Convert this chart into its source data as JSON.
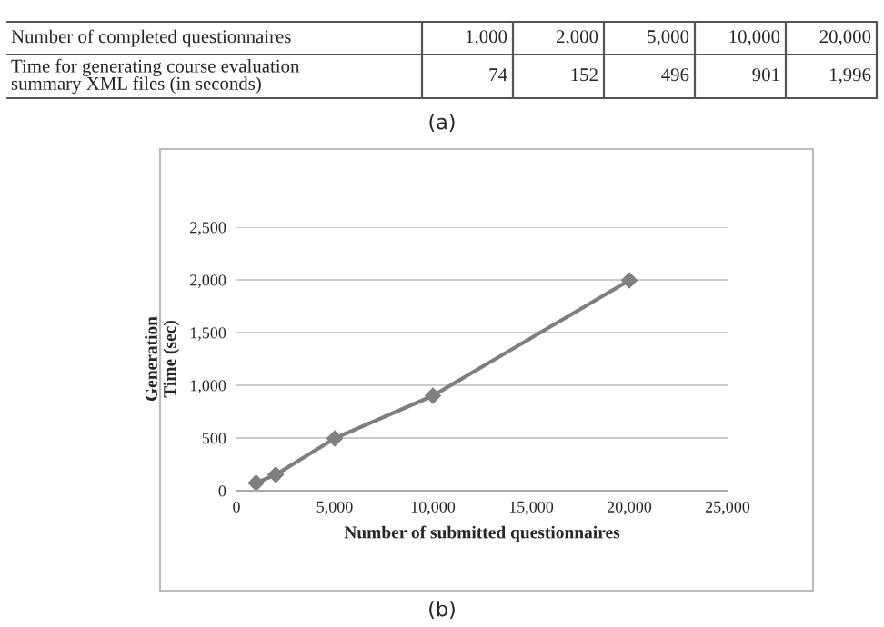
{
  "chart_data": {
    "type": "line",
    "xlabel": "Number of submitted questionnaires",
    "ylabel": "Generation\nTime (sec)",
    "x": [
      1000,
      2000,
      5000,
      10000,
      20000
    ],
    "series": [
      {
        "color": "#7f7f7f",
        "values": [
          74,
          152,
          496,
          901,
          1996
        ]
      }
    ],
    "annotations": [
      "Number of completed questionnaires",
      "1,000",
      "2,000",
      "5,000",
      "10,000",
      "20,000",
      "Time for generating course evaluation\nsummary XML files (in seconds)",
      "74",
      "152",
      "496",
      "901",
      "1,996",
      "(a)",
      "(b)"
    ],
    "xlim": [
      0,
      25000
    ],
    "xticks": [
      0,
      {
        "value": 5000,
        "label": "5,000"
      },
      {
        "value": 10000,
        "label": "10,000"
      },
      {
        "value": 15000,
        "label": "15,000"
      },
      {
        "value": 20000,
        "label": "20,000"
      },
      {
        "value": 25000,
        "label": "25,000"
      }
    ],
    "ylim": [
      0,
      2500
    ],
    "yticks": [
      0,
      {
        "value": 500,
        "label": "500"
      },
      {
        "value": 1000,
        "label": "1,000"
      },
      {
        "value": 1500,
        "label": "1,500"
      },
      {
        "value": 2000,
        "label": "2,000"
      },
      {
        "value": 2500,
        "label": "2,500"
      }
    ],
    "grid": "y",
    "marker": "diamond",
    "line_style": "solid",
    "legend": false
  }
}
